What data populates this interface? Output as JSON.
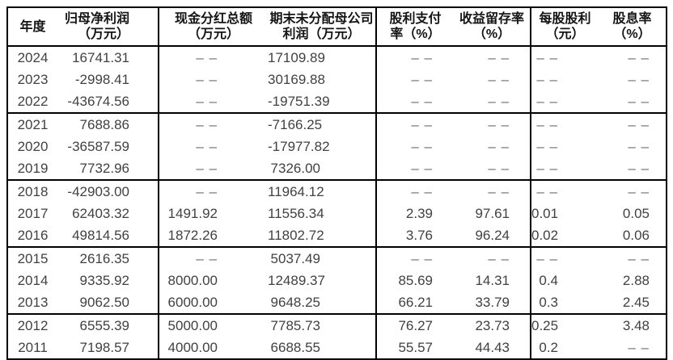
{
  "colors": {
    "background": "#ffffff",
    "border": "#000000",
    "header_text": "#141414",
    "data_text": "#414141",
    "dash_text": "#6e6e6e"
  },
  "chart_data": {
    "type": "table",
    "empty_marker": "--",
    "empty_marker_display": "– –",
    "columns": [
      {
        "name": "year",
        "label_lines": [
          "年度"
        ]
      },
      {
        "name": "net-profit",
        "label_lines": [
          "归母净利润",
          "（万元）"
        ]
      },
      {
        "name": "cash-dividend-total",
        "label_lines": [
          "现金分红总额",
          "（万元）"
        ]
      },
      {
        "name": "undistributed-parent-profit",
        "label_lines": [
          "期末未分配母公司",
          "利润（万元）"
        ]
      },
      {
        "name": "dividend-payout-ratio",
        "label_lines": [
          "股利支付",
          "率（%）"
        ]
      },
      {
        "name": "earnings-retention-ratio",
        "label_lines": [
          "收益留存率",
          "（%）"
        ]
      },
      {
        "name": "dividend-per-share",
        "label_lines": [
          "每股股利",
          "（元）"
        ]
      },
      {
        "name": "dividend-yield",
        "label_lines": [
          "股息率",
          "（%）"
        ]
      }
    ],
    "row_groups": [
      [
        [
          "2024",
          "16741.31",
          "--",
          "17109.89",
          "--",
          "--",
          "--",
          "--"
        ],
        [
          "2023",
          "-2998.41",
          "--",
          "30169.88",
          "--",
          "--",
          "--",
          "--"
        ],
        [
          "2022",
          "-43674.56",
          "--",
          "-19751.39",
          "--",
          "--",
          "--",
          "--"
        ]
      ],
      [
        [
          "2021",
          "7688.86",
          "--",
          "-7166.25",
          "--",
          "--",
          "--",
          "--"
        ],
        [
          "2020",
          "-36587.59",
          "--",
          "-17977.82",
          "--",
          "--",
          "--",
          "--"
        ],
        [
          "2019",
          "7732.96",
          "--",
          "7326.00",
          "--",
          "--",
          "--",
          "--"
        ]
      ],
      [
        [
          "2018",
          "-42903.00",
          "--",
          "11964.12",
          "--",
          "--",
          "--",
          "--"
        ],
        [
          "2017",
          "62403.32",
          "1491.92",
          "11556.34",
          "2.39",
          "97.61",
          "0.01",
          "0.05"
        ],
        [
          "2016",
          "49814.56",
          "1872.26",
          "11802.72",
          "3.76",
          "96.24",
          "0.02",
          "0.06"
        ]
      ],
      [
        [
          "2015",
          "2616.35",
          "--",
          "5037.49",
          "--",
          "--",
          "--",
          "--"
        ],
        [
          "2014",
          "9335.92",
          "8000.00",
          "12489.37",
          "85.69",
          "14.31",
          "0.4",
          "2.88"
        ],
        [
          "2013",
          "9062.50",
          "6000.00",
          "9648.25",
          "66.21",
          "33.79",
          "0.3",
          "2.45"
        ]
      ],
      [
        [
          "2012",
          "6555.39",
          "5000.00",
          "7785.73",
          "76.27",
          "23.73",
          "0.25",
          "3.48"
        ],
        [
          "2011",
          "7198.57",
          "4000.00",
          "6688.55",
          "55.57",
          "44.43",
          "0.2",
          "--"
        ]
      ]
    ]
  }
}
